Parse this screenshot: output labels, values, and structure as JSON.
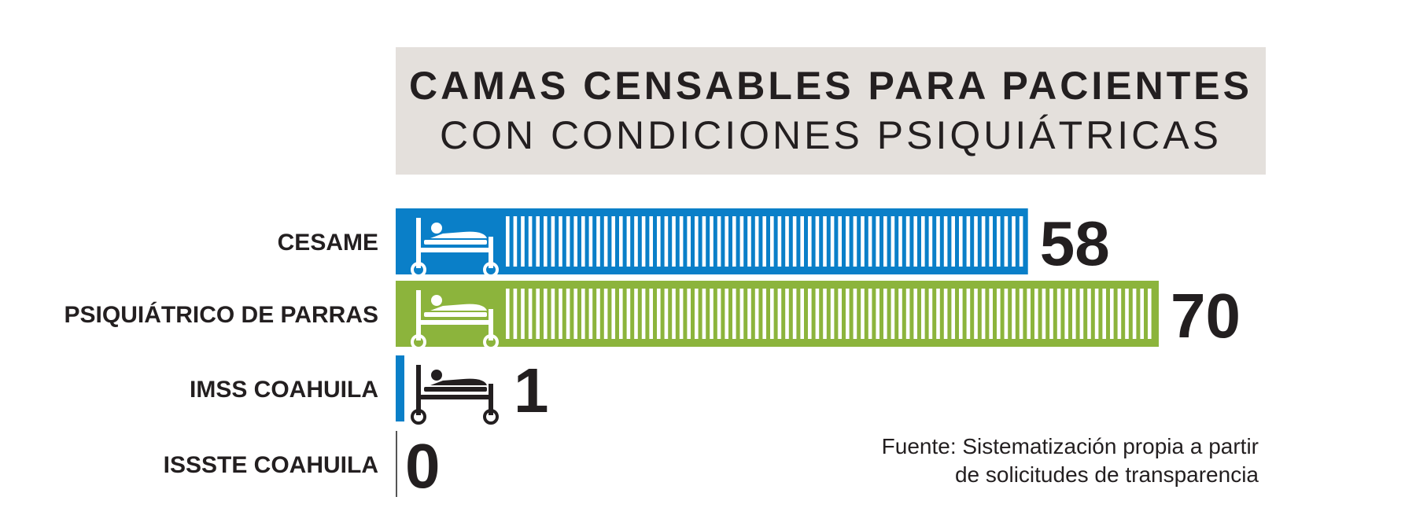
{
  "title": {
    "line1": "CAMAS CENSABLES PARA PACIENTES",
    "line2": "CON CONDICIONES PSIQUIÁTRICAS"
  },
  "source": {
    "line1": "Fuente: Sistematización propia a partir",
    "line2": "de solicitudes de transparencia"
  },
  "chart_data": {
    "type": "bar",
    "orientation": "horizontal",
    "title": "CAMAS CENSABLES PARA PACIENTES CON CONDICIONES PSIQUIÁTRICAS",
    "categories": [
      "CESAME",
      "PSIQUIÁTRICO DE PARRAS",
      "IMSS COAHUILA",
      "ISSSTE COAHUILA"
    ],
    "values": [
      58,
      70,
      1,
      0
    ],
    "colors": [
      "#0a7fc8",
      "#8cb43c",
      "#0a7fc8",
      "#0a7fc8"
    ],
    "xlim": [
      0,
      70
    ],
    "grid": false,
    "icon": "hospital-bed-icon"
  }
}
